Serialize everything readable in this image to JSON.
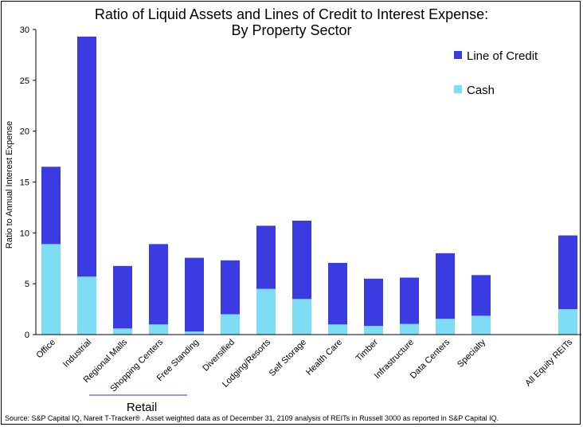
{
  "chart_data": {
    "type": "bar",
    "stacked": true,
    "title": [
      "Ratio of Liquid Assets and Lines of Credit to Interest Expense:",
      "By Property Sector"
    ],
    "ylabel": "Ratio to Annual Interest Expense",
    "xlabel": "",
    "ylim": [
      0,
      30
    ],
    "yticks": [
      0,
      5,
      10,
      15,
      20,
      25,
      30
    ],
    "grid": false,
    "legend_position": "top-right",
    "categories": [
      "Office",
      "Industrial",
      "Regional Malls",
      "Shopping Centers",
      "Free Standing",
      "Diversified",
      "Lodging/Resorts",
      "Self Storage",
      "Health Care",
      "Timber",
      "Infrastructure",
      "Data Centers",
      "Specialty",
      "All Equity REITs"
    ],
    "series": [
      {
        "name": "Cash",
        "color": "#7fdcf5",
        "values": [
          8.9,
          5.7,
          0.6,
          1.0,
          0.3,
          2.0,
          4.5,
          3.5,
          1.0,
          0.85,
          1.05,
          1.55,
          1.85,
          2.5
        ]
      },
      {
        "name": "Line of Credit",
        "color": "#3a3be0",
        "values": [
          7.6,
          23.6,
          6.15,
          7.9,
          7.25,
          5.3,
          6.2,
          7.7,
          6.05,
          4.65,
          4.55,
          6.45,
          4.0,
          7.25
        ]
      }
    ],
    "legend": [
      "Line of Credit",
      "Cash"
    ],
    "group_annotation": "Retail",
    "source": "Source: S&P Capital IQ, Nareit T-Tracker® . Asset weighted data as of December 31, 2109 analysis of REITs in Russell 3000 as reported in S&P Capital IQ."
  }
}
